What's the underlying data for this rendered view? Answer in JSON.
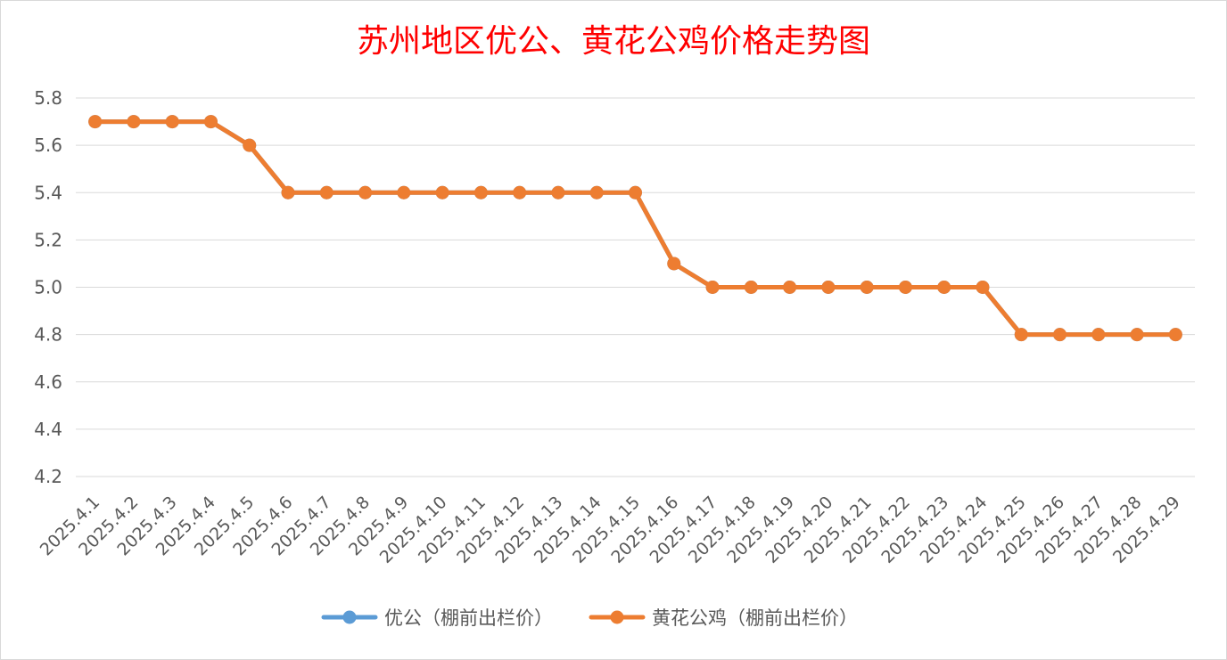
{
  "chart_data": {
    "type": "line",
    "title": "苏州地区优公、黄花公鸡价格走势图",
    "xlabel": "",
    "ylabel": "",
    "ylim": [
      4.2,
      5.8
    ],
    "yticks": [
      "5.8",
      "5.6",
      "5.4",
      "5.2",
      "5.0",
      "4.8",
      "4.6",
      "4.4",
      "4.2"
    ],
    "categories": [
      "2025.4.1",
      "2025.4.2",
      "2025.4.3",
      "2025.4.4",
      "2025.4.5",
      "2025.4.6",
      "2025.4.7",
      "2025.4.8",
      "2025.4.9",
      "2025.4.10",
      "2025.4.11",
      "2025.4.12",
      "2025.4.13",
      "2025.4.14",
      "2025.4.15",
      "2025.4.16",
      "2025.4.17",
      "2025.4.18",
      "2025.4.19",
      "2025.4.20",
      "2025.4.21",
      "2025.4.22",
      "2025.4.23",
      "2025.4.24",
      "2025.4.25",
      "2025.4.26",
      "2025.4.27",
      "2025.4.28",
      "2025.4.29"
    ],
    "grid": true,
    "legend_position": "bottom",
    "series": [
      {
        "name": "优公（棚前出栏价）",
        "color": "#5b9bd5",
        "values": [
          5.7,
          5.7,
          5.7,
          5.7,
          5.6,
          5.4,
          5.4,
          5.4,
          5.4,
          5.4,
          5.4,
          5.4,
          5.4,
          5.4,
          5.4,
          5.1,
          5.0,
          5.0,
          5.0,
          5.0,
          5.0,
          5.0,
          5.0,
          5.0,
          4.8,
          4.8,
          4.8,
          4.8,
          4.8
        ]
      },
      {
        "name": "黄花公鸡（棚前出栏价）",
        "color": "#ed7d31",
        "values": [
          5.7,
          5.7,
          5.7,
          5.7,
          5.6,
          5.4,
          5.4,
          5.4,
          5.4,
          5.4,
          5.4,
          5.4,
          5.4,
          5.4,
          5.4,
          5.1,
          5.0,
          5.0,
          5.0,
          5.0,
          5.0,
          5.0,
          5.0,
          5.0,
          4.8,
          4.8,
          4.8,
          4.8,
          4.8
        ]
      }
    ]
  }
}
